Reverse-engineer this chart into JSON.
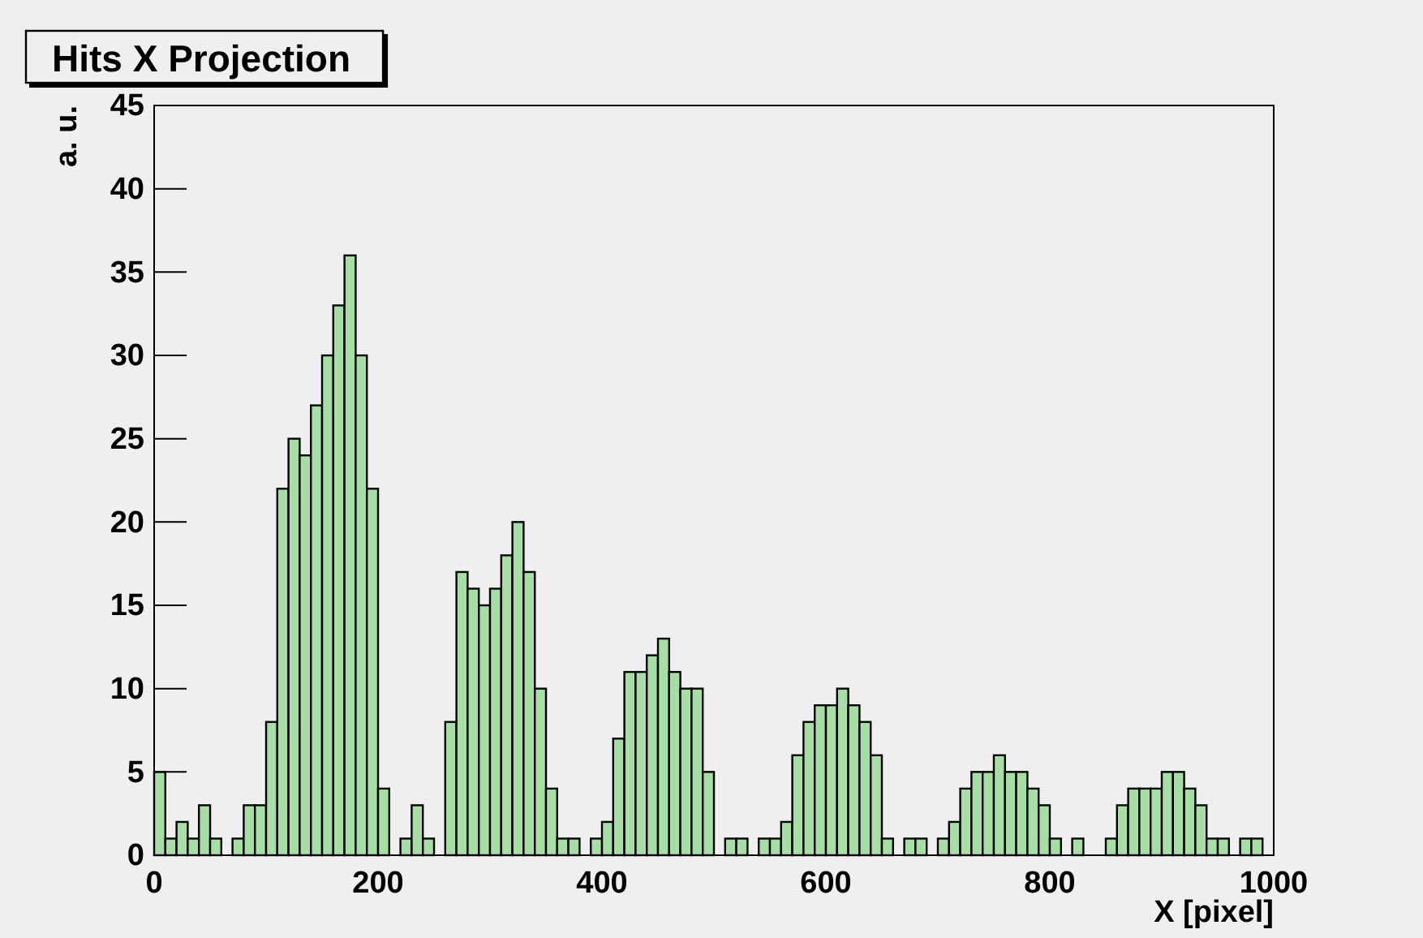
{
  "chart_data": {
    "type": "histogram",
    "title": "Hits X Projection",
    "xlabel": "X [pixel]",
    "ylabel": "a. u.",
    "bins": [
      0,
      10,
      20,
      30,
      40,
      50,
      60,
      70,
      80,
      90,
      100,
      110,
      120,
      130,
      140,
      150,
      160,
      170,
      180,
      190,
      200,
      210,
      220,
      230,
      240,
      250,
      260,
      270,
      280,
      290,
      300,
      310,
      320,
      330,
      340,
      350,
      360,
      370,
      380,
      390,
      400,
      410,
      420,
      430,
      440,
      450,
      460,
      470,
      480,
      490,
      500,
      510,
      520,
      530,
      540,
      550,
      560,
      570,
      580,
      590,
      600,
      610,
      620,
      630,
      640,
      650,
      660,
      670,
      680,
      690,
      700,
      710,
      720,
      730,
      740,
      750,
      760,
      770,
      780,
      790,
      800,
      810,
      820,
      830,
      840,
      850,
      860,
      870,
      880,
      890,
      900,
      910,
      920,
      930,
      940,
      950,
      960,
      970,
      980,
      990,
      1000
    ],
    "values": [
      5,
      1,
      2,
      1,
      3,
      1,
      0,
      1,
      3,
      3,
      8,
      22,
      25,
      24,
      27,
      30,
      33,
      36,
      30,
      22,
      4,
      0,
      1,
      3,
      1,
      0,
      8,
      17,
      16,
      15,
      16,
      18,
      20,
      17,
      10,
      4,
      1,
      1,
      0,
      1,
      2,
      7,
      11,
      11,
      12,
      13,
      11,
      10,
      10,
      5,
      0,
      1,
      1,
      0,
      1,
      1,
      2,
      6,
      8,
      9,
      9,
      10,
      9,
      8,
      6,
      1,
      0,
      1,
      1,
      0,
      1,
      2,
      4,
      5,
      5,
      6,
      5,
      5,
      4,
      3,
      1,
      0,
      1,
      0,
      0,
      1,
      3,
      4,
      4,
      4,
      5,
      5,
      4,
      3,
      1,
      1,
      0,
      1,
      1,
      0
    ],
    "color": "#a6dea6",
    "xlim": [
      0,
      1000
    ],
    "xticks": [
      0,
      200,
      400,
      600,
      800,
      1000
    ],
    "ylim": [
      0,
      45
    ],
    "yticks": [
      0,
      5,
      10,
      15,
      20,
      25,
      30,
      35,
      40,
      45
    ],
    "grid": false
  }
}
